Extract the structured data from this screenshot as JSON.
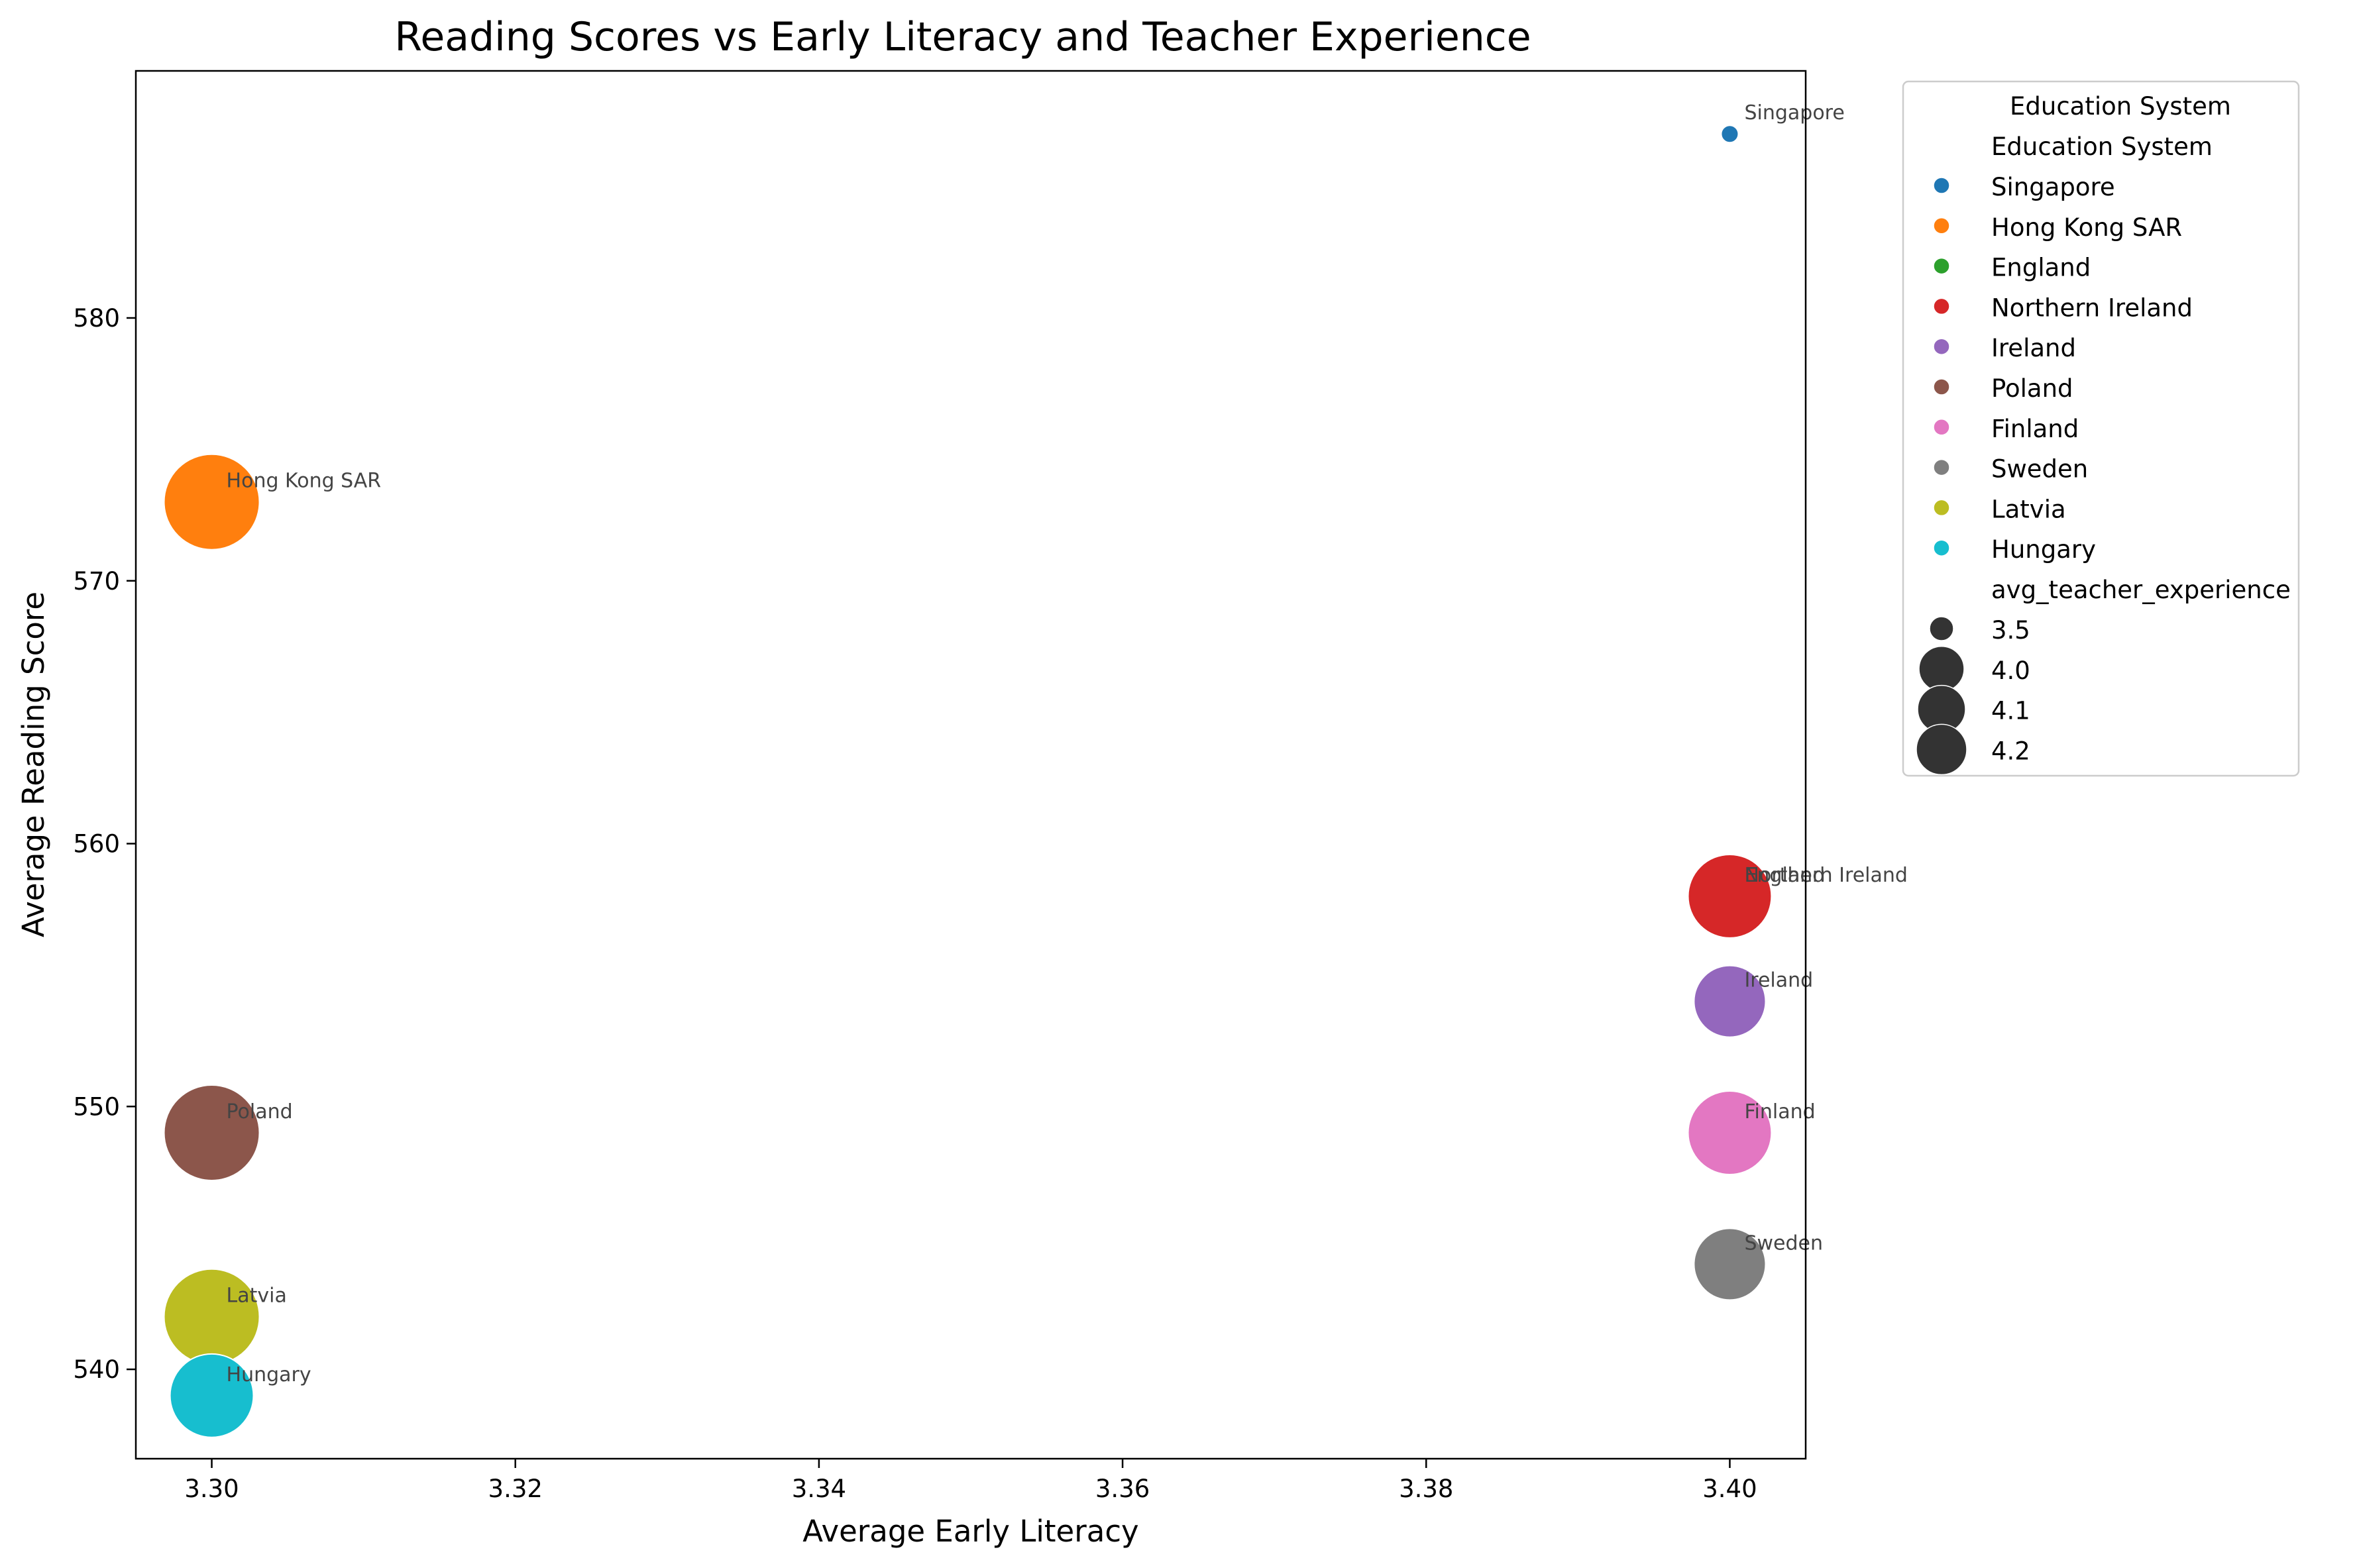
{
  "chart_data": {
    "type": "scatter",
    "title": "Reading Scores vs Early Literacy and Teacher Experience",
    "xlabel": "Average Early Literacy",
    "ylabel": "Average Reading Score",
    "xlim": [
      3.295,
      3.405
    ],
    "ylim": [
      536.6,
      589.4
    ],
    "x_ticks": [
      3.3,
      3.32,
      3.34,
      3.36,
      3.38,
      3.4
    ],
    "x_tick_labels": [
      "3.30",
      "3.32",
      "3.34",
      "3.36",
      "3.38",
      "3.40"
    ],
    "y_ticks": [
      540,
      550,
      560,
      570,
      580
    ],
    "y_tick_labels": [
      "540",
      "550",
      "560",
      "570",
      "580"
    ],
    "grid": false,
    "points": [
      {
        "label": "Singapore",
        "x": 3.4,
        "y": 587,
        "size": 3.5,
        "color": "#1f77b4"
      },
      {
        "label": "Hong Kong SAR",
        "x": 3.3,
        "y": 573,
        "size": 4.2,
        "color": "#ff7f0e"
      },
      {
        "label": "England",
        "x": 3.4,
        "y": 558,
        "size": 4.0,
        "color": "#2ca02c"
      },
      {
        "label": "Northern Ireland",
        "x": 3.4,
        "y": 558,
        "size": 4.1,
        "color": "#d62728"
      },
      {
        "label": "Ireland",
        "x": 3.4,
        "y": 554,
        "size": 4.0,
        "color": "#9467bd"
      },
      {
        "label": "Poland",
        "x": 3.3,
        "y": 549,
        "size": 4.2,
        "color": "#8c564b"
      },
      {
        "label": "Finland",
        "x": 3.4,
        "y": 549,
        "size": 4.1,
        "color": "#e377c2"
      },
      {
        "label": "Sweden",
        "x": 3.4,
        "y": 544,
        "size": 4.0,
        "color": "#7f7f7f"
      },
      {
        "label": "Latvia",
        "x": 3.3,
        "y": 542,
        "size": 4.2,
        "color": "#bcbd22"
      },
      {
        "label": "Hungary",
        "x": 3.3,
        "y": 539,
        "size": 4.1,
        "color": "#17becf"
      }
    ],
    "legend": {
      "placement": "outside-right",
      "title": "Education System",
      "hue_header": "Education System",
      "hue_entries": [
        {
          "name": "Singapore",
          "color": "#1f77b4"
        },
        {
          "name": "Hong Kong SAR",
          "color": "#ff7f0e"
        },
        {
          "name": "England",
          "color": "#2ca02c"
        },
        {
          "name": "Northern Ireland",
          "color": "#d62728"
        },
        {
          "name": "Ireland",
          "color": "#9467bd"
        },
        {
          "name": "Poland",
          "color": "#8c564b"
        },
        {
          "name": "Finland",
          "color": "#e377c2"
        },
        {
          "name": "Sweden",
          "color": "#7f7f7f"
        },
        {
          "name": "Latvia",
          "color": "#bcbd22"
        },
        {
          "name": "Hungary",
          "color": "#17becf"
        }
      ],
      "size_header": "avg_teacher_experience",
      "size_entries": [
        {
          "label": "3.5",
          "value": 3.5
        },
        {
          "label": "4.0",
          "value": 4.0
        },
        {
          "label": "4.1",
          "value": 4.1
        },
        {
          "label": "4.2",
          "value": 4.2
        }
      ],
      "size_color": "#333333"
    }
  }
}
